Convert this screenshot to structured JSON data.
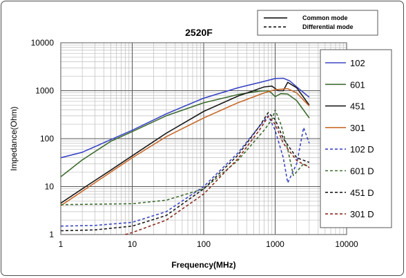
{
  "chart_data": {
    "type": "line",
    "title": "2520F",
    "xlabel": "Frequency(MHz)",
    "ylabel": "Impedance(Ohm)",
    "xscale": "log",
    "yscale": "log",
    "xlim": [
      1,
      10000
    ],
    "ylim": [
      1,
      10000
    ],
    "x_ticks": [
      "1",
      "10",
      "100",
      "1000",
      "10000"
    ],
    "y_ticks": [
      "10000",
      "1000",
      "100",
      "10",
      "1"
    ],
    "grid": true,
    "legend_position": "right",
    "style_legend": [
      {
        "label": "Common mode",
        "dash": "solid"
      },
      {
        "label": "Differential mode",
        "dash": "dashed"
      }
    ],
    "series": [
      {
        "name": "102",
        "color": "#3b46c4",
        "dash": "solid",
        "points": [
          [
            1,
            40
          ],
          [
            2,
            52
          ],
          [
            5,
            95
          ],
          [
            10,
            150
          ],
          [
            30,
            330
          ],
          [
            100,
            700
          ],
          [
            300,
            1150
          ],
          [
            600,
            1480
          ],
          [
            1000,
            1800
          ],
          [
            1300,
            1820
          ],
          [
            1600,
            1600
          ],
          [
            2000,
            1200
          ],
          [
            3000,
            730
          ]
        ]
      },
      {
        "name": "601",
        "color": "#3d6b2f",
        "dash": "solid",
        "points": [
          [
            1,
            16
          ],
          [
            2,
            36
          ],
          [
            5,
            88
          ],
          [
            10,
            140
          ],
          [
            30,
            300
          ],
          [
            100,
            560
          ],
          [
            300,
            830
          ],
          [
            600,
            980
          ],
          [
            800,
            1000
          ],
          [
            900,
            880
          ],
          [
            1000,
            750
          ],
          [
            1200,
            870
          ],
          [
            1500,
            850
          ],
          [
            2000,
            620
          ],
          [
            3000,
            270
          ]
        ]
      },
      {
        "name": "451",
        "color": "#1a1a1a",
        "dash": "solid",
        "points": [
          [
            1,
            4.5
          ],
          [
            2,
            9
          ],
          [
            5,
            22
          ],
          [
            10,
            44
          ],
          [
            30,
            130
          ],
          [
            100,
            370
          ],
          [
            300,
            770
          ],
          [
            700,
            1200
          ],
          [
            900,
            1250
          ],
          [
            1100,
            1000
          ],
          [
            1300,
            1000
          ],
          [
            1500,
            1500
          ],
          [
            2000,
            1150
          ],
          [
            3000,
            500
          ]
        ]
      },
      {
        "name": "301",
        "color": "#c86a2a",
        "dash": "solid",
        "points": [
          [
            1,
            4
          ],
          [
            2,
            8
          ],
          [
            5,
            20
          ],
          [
            10,
            40
          ],
          [
            30,
            110
          ],
          [
            100,
            270
          ],
          [
            300,
            560
          ],
          [
            700,
            900
          ],
          [
            1000,
            1050
          ],
          [
            1500,
            1100
          ],
          [
            2000,
            900
          ],
          [
            3000,
            480
          ]
        ]
      },
      {
        "name": "102 D",
        "color": "#3b46c4",
        "dash": "dashed",
        "points": [
          [
            1,
            1.5
          ],
          [
            3,
            1.55
          ],
          [
            10,
            1.8
          ],
          [
            30,
            3
          ],
          [
            100,
            10
          ],
          [
            300,
            50
          ],
          [
            600,
            180
          ],
          [
            800,
            300
          ],
          [
            1000,
            150
          ],
          [
            1300,
            40
          ],
          [
            1500,
            12
          ],
          [
            2000,
            30
          ],
          [
            2500,
            170
          ],
          [
            3000,
            80
          ]
        ]
      },
      {
        "name": "601 D",
        "color": "#3d6b2f",
        "dash": "dashed",
        "points": [
          [
            1,
            4.2
          ],
          [
            10,
            4.4
          ],
          [
            30,
            5.2
          ],
          [
            100,
            9
          ],
          [
            300,
            35
          ],
          [
            700,
            150
          ],
          [
            900,
            250
          ],
          [
            1000,
            400
          ],
          [
            1200,
            200
          ],
          [
            1500,
            60
          ],
          [
            1800,
            17
          ],
          [
            2500,
            30
          ],
          [
            3000,
            25
          ]
        ]
      },
      {
        "name": "451 D",
        "color": "#1a1a1a",
        "dash": "dashed",
        "points": [
          [
            1,
            1.2
          ],
          [
            3,
            1.25
          ],
          [
            10,
            1.5
          ],
          [
            30,
            2.5
          ],
          [
            100,
            9
          ],
          [
            300,
            45
          ],
          [
            600,
            180
          ],
          [
            800,
            350
          ],
          [
            1000,
            250
          ],
          [
            1300,
            100
          ],
          [
            2000,
            40
          ],
          [
            3000,
            32
          ]
        ]
      },
      {
        "name": "301 D",
        "color": "#8b2a20",
        "dash": "dashed",
        "points": [
          [
            8,
            1
          ],
          [
            10,
            1.1
          ],
          [
            30,
            2
          ],
          [
            100,
            7
          ],
          [
            300,
            38
          ],
          [
            600,
            150
          ],
          [
            800,
            290
          ],
          [
            1000,
            200
          ],
          [
            1300,
            80
          ],
          [
            2000,
            35
          ],
          [
            3000,
            25
          ]
        ]
      }
    ]
  }
}
